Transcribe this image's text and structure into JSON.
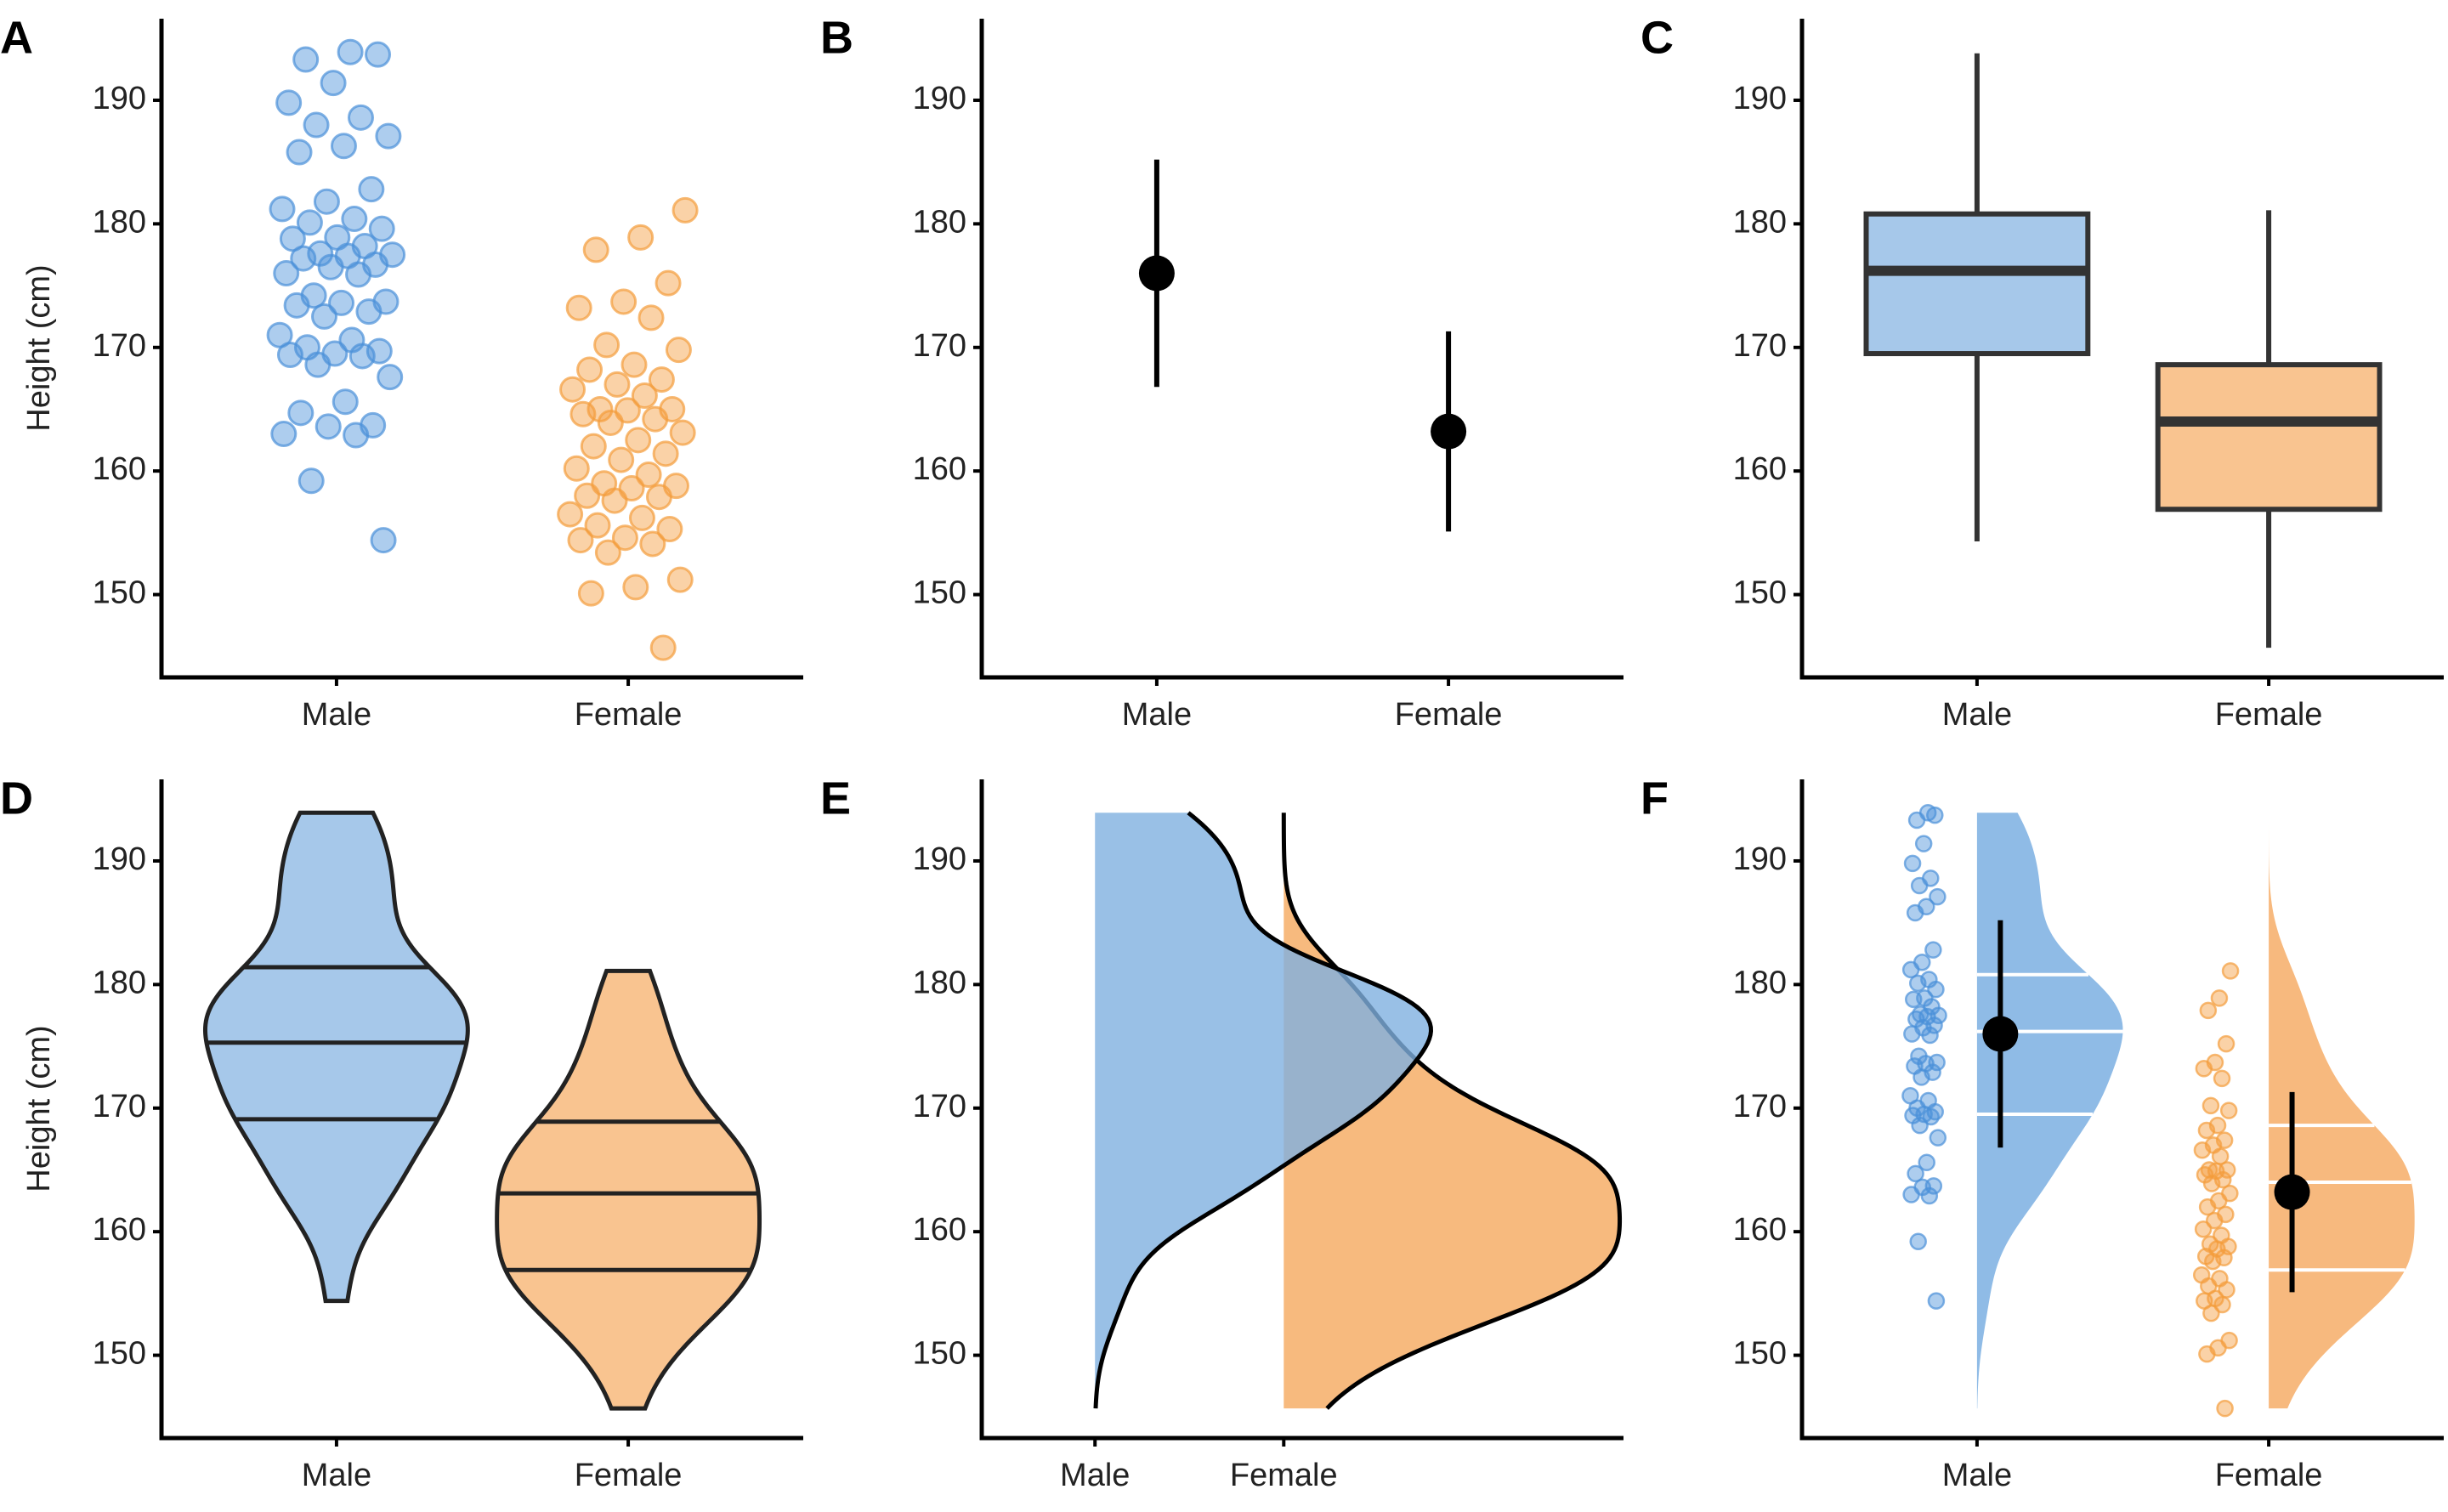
{
  "chart_data": [
    {
      "type": "strip",
      "panel": "A",
      "ylabel": "Height (cm)",
      "categories": [
        "Male",
        "Female"
      ],
      "colors": [
        "#4a90d9",
        "#f39c3c"
      ],
      "values": [
        [
          193.9,
          193.3,
          193.7,
          191.4,
          189.8,
          188.6,
          188.0,
          187.1,
          186.3,
          185.8,
          182.8,
          181.8,
          181.2,
          180.4,
          180.1,
          179.6,
          178.9,
          178.8,
          178.2,
          177.6,
          177.5,
          177.4,
          177.2,
          176.7,
          176.5,
          176.0,
          175.9,
          174.2,
          173.7,
          173.6,
          173.4,
          172.9,
          172.5,
          171.0,
          170.6,
          170.0,
          169.7,
          169.5,
          169.4,
          169.3,
          168.6,
          167.6,
          165.6,
          164.7,
          163.7,
          163.6,
          163.0,
          162.9,
          159.2,
          154.4
        ],
        [
          181.1,
          178.9,
          177.9,
          175.2,
          173.7,
          173.2,
          172.4,
          170.2,
          169.8,
          168.6,
          168.2,
          167.4,
          167.0,
          166.6,
          166.1,
          165.0,
          165.0,
          164.9,
          164.6,
          164.2,
          163.9,
          163.1,
          162.5,
          162.0,
          161.4,
          160.9,
          160.2,
          159.7,
          159.0,
          158.8,
          158.6,
          158.0,
          157.9,
          157.6,
          156.5,
          156.2,
          155.6,
          155.3,
          154.6,
          154.4,
          154.1,
          153.4,
          151.2,
          150.6,
          150.1,
          145.7
        ]
      ],
      "ylim": [
        143.3,
        196.6
      ],
      "yticks": [
        150,
        160,
        170,
        180,
        190
      ]
    },
    {
      "type": "pointrange",
      "panel": "B",
      "categories": [
        "Male",
        "Female"
      ],
      "values": [
        176,
        163.2
      ],
      "errors": [
        9.2,
        8.1
      ],
      "color": "#000000",
      "ylim": [
        143.3,
        196.6
      ],
      "yticks": [
        150,
        160,
        170,
        180,
        190
      ]
    },
    {
      "type": "box",
      "panel": "C",
      "categories": [
        "Male",
        "Female"
      ],
      "colors": [
        "#a6c8ea",
        "#f9c490"
      ],
      "stats": [
        [
          154.3,
          169.5,
          176.2,
          180.8,
          193.8
        ],
        [
          145.7,
          156.9,
          164.0,
          168.6,
          181.1
        ]
      ],
      "ylim": [
        143.3,
        196.6
      ],
      "yticks": [
        150,
        160,
        170,
        180,
        190
      ]
    },
    {
      "type": "violin",
      "panel": "D",
      "ylabel": "Height (cm)",
      "categories": [
        "Male",
        "Female"
      ],
      "colors": [
        "#a6c8ea",
        "#f9c490"
      ],
      "quantiles": [
        [
          169.1,
          175.3,
          181.4
        ],
        [
          156.9,
          163.1,
          168.9
        ]
      ],
      "ylim": [
        143.3,
        196.6
      ],
      "yticks": [
        150,
        160,
        170,
        180,
        190
      ]
    },
    {
      "type": "density",
      "panel": "E",
      "categories": [
        "Male",
        "Female"
      ],
      "colors": [
        "#7fb0e0",
        "#f5a95e"
      ],
      "ylim": [
        143.3,
        196.6
      ],
      "yticks": [
        150,
        160,
        170,
        180,
        190
      ]
    },
    {
      "type": "raincloud",
      "panel": "F",
      "categories": [
        "Male",
        "Female"
      ],
      "colors": [
        "#4a90d9",
        "#f39c3c"
      ],
      "fills": [
        "#8fbbe6",
        "#f7b97e"
      ],
      "quantiles": [
        [
          169.5,
          176.2,
          180.8
        ],
        [
          156.9,
          164.0,
          168.6
        ]
      ],
      "values": [
        176,
        163.2
      ],
      "errors": [
        9.2,
        8.1
      ],
      "ylim": [
        143.3,
        196.6
      ],
      "yticks": [
        150,
        160,
        170,
        180,
        190
      ]
    }
  ]
}
